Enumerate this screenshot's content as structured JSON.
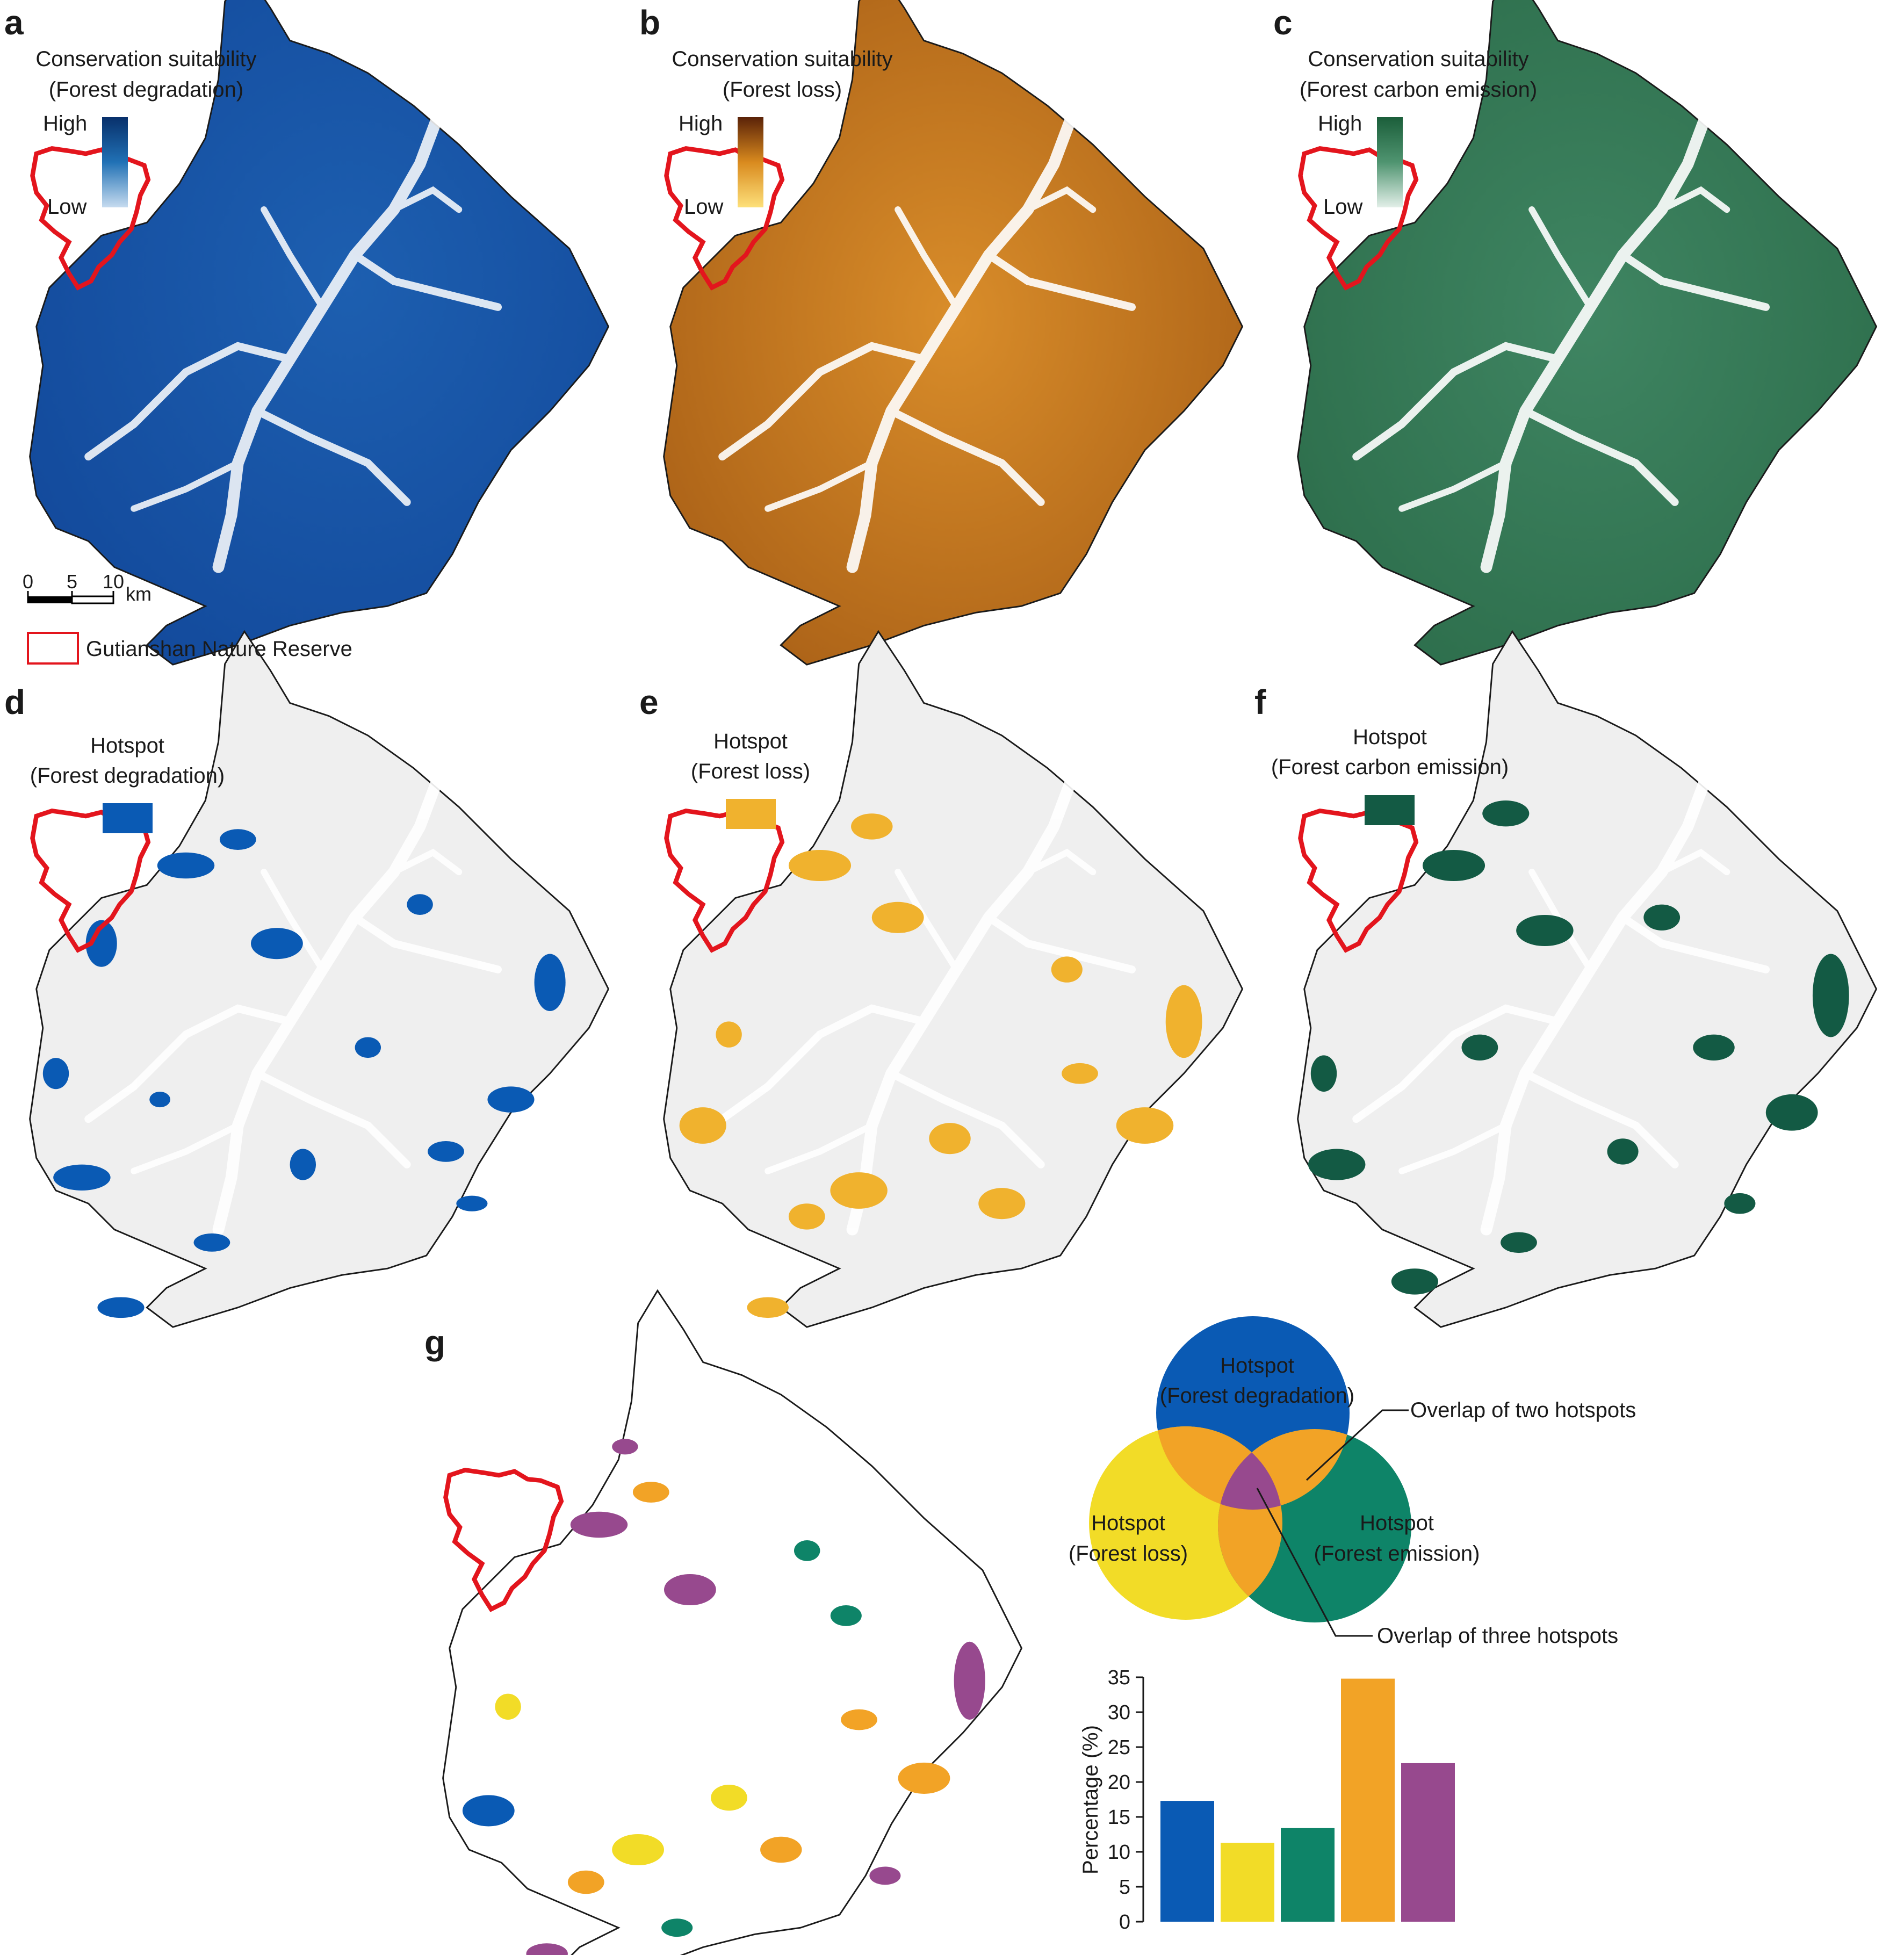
{
  "panels": {
    "a": {
      "letter": "a",
      "title1": "Conservation suitability",
      "title2": "(Forest degradation)",
      "high": "High",
      "low": "Low"
    },
    "b": {
      "letter": "b",
      "title1": "Conservation suitability",
      "title2": "(Forest loss)",
      "high": "High",
      "low": "Low"
    },
    "c": {
      "letter": "c",
      "title1": "Conservation suitability",
      "title2": "(Forest carbon emission)",
      "high": "High",
      "low": "Low"
    },
    "d": {
      "letter": "d",
      "title1": "Hotspot",
      "title2": "(Forest degradation)"
    },
    "e": {
      "letter": "e",
      "title1": "Hotspot",
      "title2": "(Forest loss)"
    },
    "f": {
      "letter": "f",
      "title1": "Hotspot",
      "title2": "(Forest carbon emission)"
    },
    "g": {
      "letter": "g"
    }
  },
  "scalebar": {
    "ticks": [
      "0",
      "5",
      "10"
    ],
    "unit": "km"
  },
  "reserve_legend": "Gutianshan Nature Reserve",
  "venn": {
    "degradation": [
      "Hotspot",
      "(Forest degradation)"
    ],
    "loss": [
      "Hotspot",
      "(Forest loss)"
    ],
    "emission": [
      "Hotspot",
      "(Forest emission)"
    ],
    "overlap_two": "Overlap of two hotspots",
    "overlap_three": "Overlap of three hotspots"
  },
  "colors": {
    "degradation": "#0a5ab4",
    "loss": "#f2dc27",
    "emission": "#0e8468",
    "overlap_two": "#f2a326",
    "overlap_three": "#97498e",
    "reserve": "#e3151d",
    "hotspot_bg": "#efefef"
  },
  "chart_data": {
    "type": "bar",
    "categories": [
      "Forest degradation",
      "Forest loss",
      "Forest emission",
      "Overlap of two hotspots",
      "Overlap of three hotspots"
    ],
    "values": [
      17.3,
      11.3,
      13.4,
      34.8,
      22.7
    ],
    "ylabel": "Percentage (%)",
    "ylim": [
      0,
      35
    ],
    "yticks": [
      "0",
      "5",
      "10",
      "15",
      "20",
      "25",
      "30",
      "35"
    ]
  }
}
